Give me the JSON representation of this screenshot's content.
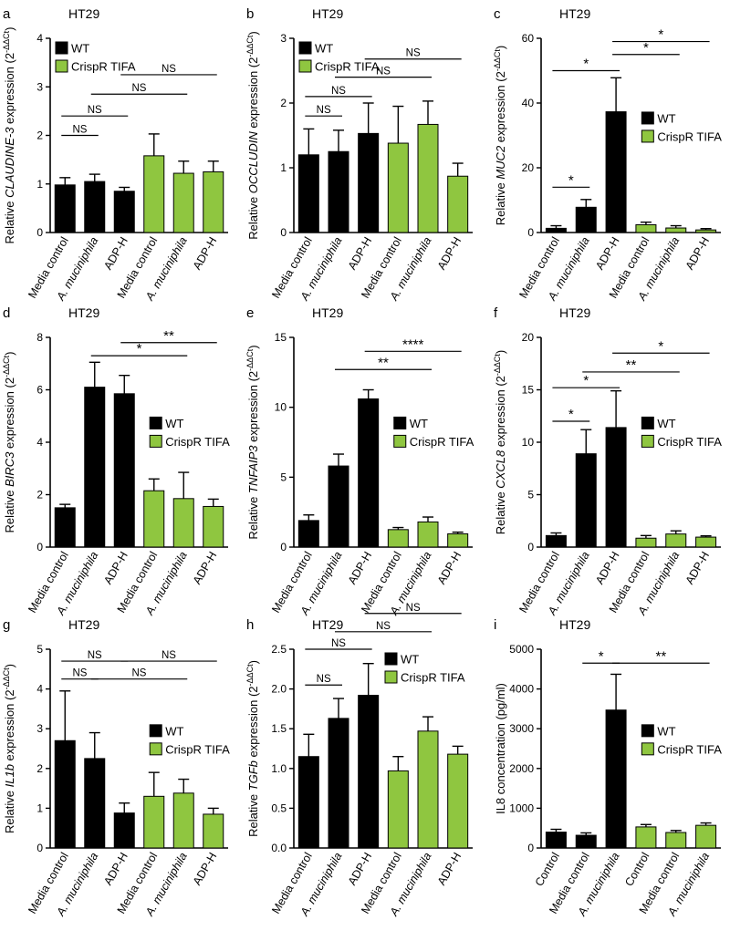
{
  "figure": {
    "description_panels": "3x3 grid of bar charts"
  },
  "colors": {
    "wt": "#000000",
    "crispr": "#8fc640",
    "axis": "#000000"
  },
  "chart_data": [
    {
      "panel": "a",
      "cell_line": "HT29",
      "type": "bar",
      "ylabel": "Relative CLAUDINE-3 expression (2^-ΔΔCt)",
      "ylabel_parts": [
        "Relative ",
        "CLAUDINE-3",
        " expression (2",
        "-ΔΔCt",
        ")"
      ],
      "ylim": [
        0,
        4
      ],
      "yticks": [
        0,
        1,
        2,
        3,
        4
      ],
      "categories": [
        "Media control",
        "A. muciniphila",
        "ADP-H",
        "Media control",
        "A. muciniphila",
        "ADP-H"
      ],
      "italic_categories": [
        1,
        4
      ],
      "groups": [
        "wt",
        "wt",
        "wt",
        "crispr",
        "crispr",
        "crispr"
      ],
      "values": [
        0.98,
        1.05,
        0.85,
        1.58,
        1.22,
        1.25
      ],
      "errors": [
        0.15,
        0.15,
        0.08,
        0.45,
        0.25,
        0.22
      ],
      "legend": [
        "WT",
        "CrispR TIFA"
      ],
      "legend_pos": "top-left",
      "significance": [
        {
          "from": 0,
          "to": 1,
          "label": "NS",
          "level": 2.0
        },
        {
          "from": 0,
          "to": 2,
          "label": "NS",
          "level": 2.4
        },
        {
          "from": 1,
          "to": 4,
          "label": "NS",
          "level": 2.85
        },
        {
          "from": 2,
          "to": 5,
          "label": "NS",
          "level": 3.25
        }
      ]
    },
    {
      "panel": "b",
      "cell_line": "HT29",
      "type": "bar",
      "ylabel": "Relative OCCLUDIN expression (2^-ΔΔCt)",
      "ylabel_parts": [
        "Relative ",
        "OCCLUDIN",
        " expression (2",
        "-ΔΔCt",
        ")"
      ],
      "ylim": [
        0,
        3
      ],
      "yticks": [
        0,
        1,
        2,
        3
      ],
      "categories": [
        "Media control",
        "A. muciniphila",
        "ADP-H",
        "Media control",
        "A. muciniphila",
        "ADP-H"
      ],
      "italic_categories": [
        1,
        4
      ],
      "groups": [
        "wt",
        "wt",
        "wt",
        "crispr",
        "crispr",
        "crispr"
      ],
      "values": [
        1.2,
        1.25,
        1.53,
        1.38,
        1.67,
        0.87
      ],
      "errors": [
        0.4,
        0.33,
        0.47,
        0.57,
        0.36,
        0.2
      ],
      "legend": [
        "WT",
        "CrispR TIFA"
      ],
      "legend_pos": "top-left",
      "significance": [
        {
          "from": 0,
          "to": 1,
          "label": "NS",
          "level": 1.8
        },
        {
          "from": 0,
          "to": 2,
          "label": "NS",
          "level": 2.1
        },
        {
          "from": 1,
          "to": 4,
          "label": "NS",
          "level": 2.4
        },
        {
          "from": 2,
          "to": 5,
          "label": "NS",
          "level": 2.68
        }
      ]
    },
    {
      "panel": "c",
      "cell_line": "HT29",
      "type": "bar",
      "ylabel": "Relative MUC2 expression (2^-ΔΔCt)",
      "ylabel_parts": [
        "Relative ",
        "MUC2",
        " expression (2",
        "-ΔΔCt",
        ")"
      ],
      "ylim": [
        0,
        60
      ],
      "yticks": [
        0,
        20,
        40,
        60
      ],
      "categories": [
        "Media control",
        "A. muciniphila",
        "ADP-H",
        "Media control",
        "A. muciniphila",
        "ADP-H"
      ],
      "italic_categories": [
        1,
        4
      ],
      "groups": [
        "wt",
        "wt",
        "wt",
        "crispr",
        "crispr",
        "crispr"
      ],
      "values": [
        1.3,
        7.8,
        37.3,
        2.4,
        1.4,
        0.8
      ],
      "errors": [
        0.8,
        2.4,
        10.5,
        0.8,
        0.7,
        0.4
      ],
      "legend": [
        "WT",
        "CrispR TIFA"
      ],
      "legend_pos": "right",
      "significance": [
        {
          "from": 0,
          "to": 1,
          "label": "*",
          "level": 14
        },
        {
          "from": 0,
          "to": 2,
          "label": "*",
          "level": 50
        },
        {
          "from": 2,
          "to": 4,
          "label": "*",
          "level": 55
        },
        {
          "from": 2,
          "to": 5,
          "label": "*",
          "level": 59
        }
      ]
    },
    {
      "panel": "d",
      "cell_line": "HT29",
      "type": "bar",
      "ylabel": "Relative BIRC3 expression (2^-ΔΔCt)",
      "ylabel_parts": [
        "Relative ",
        "BIRC3",
        " expression (2",
        "-ΔΔCt",
        ")"
      ],
      "ylim": [
        0,
        8
      ],
      "yticks": [
        0,
        2,
        4,
        6,
        8
      ],
      "categories": [
        "Media control",
        "A. muciniphila",
        "ADP-H",
        "Media control",
        "A. muciniphila",
        "ADP-H"
      ],
      "italic_categories": [
        1,
        4
      ],
      "groups": [
        "wt",
        "wt",
        "wt",
        "crispr",
        "crispr",
        "crispr"
      ],
      "values": [
        1.5,
        6.1,
        5.85,
        2.15,
        1.85,
        1.55
      ],
      "errors": [
        0.13,
        0.95,
        0.7,
        0.45,
        1.0,
        0.28
      ],
      "legend": [
        "WT",
        "CrispR TIFA"
      ],
      "legend_pos": "right",
      "significance": [
        {
          "from": 1,
          "to": 4,
          "label": "*",
          "level": 7.3
        },
        {
          "from": 2,
          "to": 5,
          "label": "**",
          "level": 7.8
        }
      ]
    },
    {
      "panel": "e",
      "cell_line": "HT29",
      "type": "bar",
      "ylabel": "Relative TNFAIP3 expression (2^-ΔΔCt)",
      "ylabel_parts": [
        "Relative ",
        "TNFAIP3",
        " expression (2",
        "-ΔΔCt",
        ")"
      ],
      "ylim": [
        0,
        15
      ],
      "yticks": [
        0,
        5,
        10,
        15
      ],
      "categories": [
        "Media control",
        "A. muciniphila",
        "ADP-H",
        "Media control",
        "A. muciniphila",
        "ADP-H"
      ],
      "italic_categories": [
        1,
        4
      ],
      "groups": [
        "wt",
        "wt",
        "wt",
        "crispr",
        "crispr",
        "crispr"
      ],
      "values": [
        1.9,
        5.8,
        10.6,
        1.25,
        1.8,
        0.95
      ],
      "errors": [
        0.4,
        0.85,
        0.65,
        0.15,
        0.35,
        0.12
      ],
      "legend": [
        "WT",
        "CrispR TIFA"
      ],
      "legend_pos": "right",
      "significance": [
        {
          "from": 1,
          "to": 4,
          "label": "**",
          "level": 12.7
        },
        {
          "from": 2,
          "to": 5,
          "label": "****",
          "level": 14.0
        }
      ]
    },
    {
      "panel": "f",
      "cell_line": "HT29",
      "type": "bar",
      "ylabel": "Relative CXCL8 expression (2^-ΔΔCt)",
      "ylabel_parts": [
        "Relative ",
        "CXCL8",
        " expression (2",
        "-ΔΔCt",
        ")"
      ],
      "ylim": [
        0,
        20
      ],
      "yticks": [
        0,
        5,
        10,
        15,
        20
      ],
      "categories": [
        "Media control",
        "A. muciniphila",
        "ADP-H",
        "Media control",
        "A. muciniphila",
        "ADP-H"
      ],
      "italic_categories": [
        1,
        4
      ],
      "groups": [
        "wt",
        "wt",
        "wt",
        "crispr",
        "crispr",
        "crispr"
      ],
      "values": [
        1.1,
        8.9,
        11.4,
        0.85,
        1.25,
        0.95
      ],
      "errors": [
        0.25,
        2.3,
        3.5,
        0.25,
        0.3,
        0.12
      ],
      "legend": [
        "WT",
        "CrispR TIFA"
      ],
      "legend_pos": "right",
      "significance": [
        {
          "from": 0,
          "to": 1,
          "label": "*",
          "level": 12.0
        },
        {
          "from": 0,
          "to": 2,
          "label": "*",
          "level": 15.2
        },
        {
          "from": 1,
          "to": 4,
          "label": "**",
          "level": 16.7
        },
        {
          "from": 2,
          "to": 5,
          "label": "*",
          "level": 18.5
        }
      ]
    },
    {
      "panel": "g",
      "cell_line": "HT29",
      "type": "bar",
      "ylabel": "Relative IL1b expression (2^-ΔΔCt)",
      "ylabel_parts": [
        "Relative ",
        "IL1b",
        " expression (2",
        "-ΔΔCt",
        ")"
      ],
      "ylim": [
        0,
        5
      ],
      "yticks": [
        0,
        1,
        2,
        3,
        4,
        5
      ],
      "categories": [
        "Media control",
        "A. muciniphila",
        "ADP-H",
        "Media control",
        "A. muciniphila",
        "ADP-H"
      ],
      "italic_categories": [
        1,
        4
      ],
      "groups": [
        "wt",
        "wt",
        "wt",
        "crispr",
        "crispr",
        "crispr"
      ],
      "values": [
        2.7,
        2.25,
        0.88,
        1.3,
        1.38,
        0.85
      ],
      "errors": [
        1.25,
        0.65,
        0.25,
        0.6,
        0.35,
        0.15
      ],
      "legend": [
        "WT",
        "CrispR TIFA"
      ],
      "legend_pos": "right",
      "significance": [
        {
          "from": 0,
          "to": 1,
          "label": "NS",
          "level": 4.25
        },
        {
          "from": 0,
          "to": 2,
          "label": "NS",
          "level": 4.7
        },
        {
          "from": 1,
          "to": 4,
          "label": "NS",
          "level": 4.25
        },
        {
          "from": 2,
          "to": 5,
          "label": "NS",
          "level": 4.7
        }
      ]
    },
    {
      "panel": "h",
      "cell_line": "HT29",
      "type": "bar",
      "ylabel": "Relative TGFb expression (2^-ΔΔCt)",
      "ylabel_parts": [
        "Relative ",
        "TGFb",
        " expression (2",
        "-ΔΔCt",
        ")"
      ],
      "ylim": [
        0,
        2.5
      ],
      "yticks": [
        0.0,
        0.5,
        1.0,
        1.5,
        2.0,
        2.5
      ],
      "categories": [
        "Media control",
        "A. muciniphila",
        "ADP-H",
        "Media control",
        "A. muciniphila",
        "ADP-H"
      ],
      "italic_categories": [
        1,
        4
      ],
      "groups": [
        "wt",
        "wt",
        "wt",
        "crispr",
        "crispr",
        "crispr"
      ],
      "values": [
        1.15,
        1.63,
        1.92,
        0.97,
        1.47,
        1.18
      ],
      "errors": [
        0.28,
        0.25,
        0.4,
        0.18,
        0.18,
        0.1
      ],
      "legend": [
        "WT",
        "CrispR TIFA"
      ],
      "legend_pos": "top-right",
      "significance": [
        {
          "from": 0,
          "to": 1,
          "label": "NS",
          "level": 2.05
        },
        {
          "from": 0,
          "to": 2,
          "label": "NS",
          "level": 2.5
        },
        {
          "from": 1,
          "to": 4,
          "label": "NS",
          "level": 2.72
        },
        {
          "from": 2,
          "to": 5,
          "label": "NS",
          "level": 2.95
        }
      ]
    },
    {
      "panel": "i",
      "cell_line": "HT29",
      "type": "bar",
      "ylabel": "IL8 concentration (pg/ml)",
      "ylabel_parts": [
        "IL8 concentration (pg/ml)",
        "",
        "",
        "",
        ""
      ],
      "ylim": [
        0,
        5000
      ],
      "yticks": [
        0,
        1000,
        2000,
        3000,
        4000,
        5000
      ],
      "categories": [
        "Control",
        "Media control",
        "A. muciniphila",
        "Control",
        "Media control",
        "A. muciniphila"
      ],
      "italic_categories": [
        2,
        5
      ],
      "groups": [
        "wt",
        "wt",
        "wt",
        "crispr",
        "crispr",
        "crispr"
      ],
      "values": [
        400,
        320,
        3470,
        530,
        390,
        570
      ],
      "errors": [
        70,
        60,
        900,
        60,
        50,
        60
      ],
      "legend": [
        "WT",
        "CrispR TIFA"
      ],
      "legend_pos": "right",
      "significance": [
        {
          "from": 1,
          "to": 2,
          "label": "*",
          "level": 4650
        },
        {
          "from": 2,
          "to": 5,
          "label": "**",
          "level": 4650
        }
      ]
    }
  ]
}
